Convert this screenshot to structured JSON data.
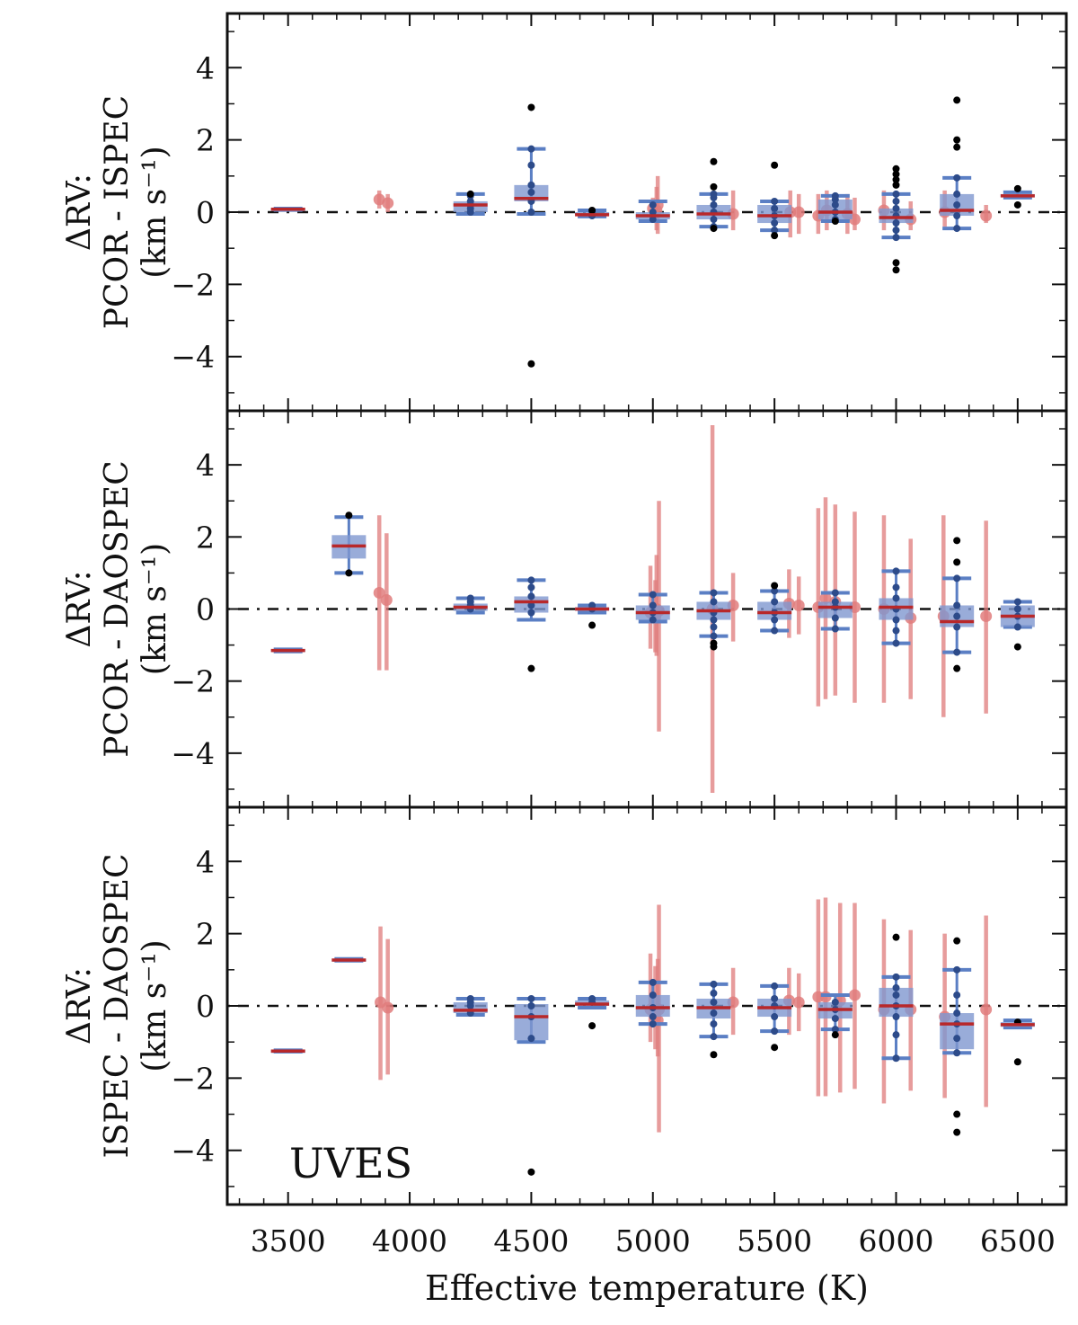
{
  "colors": {
    "box": "#7f97cf",
    "median": "#b8282a",
    "whisker": "#5b7fc4",
    "point": "#e07c7c",
    "outlier": "#000000",
    "inner_point": "#2d4b8a"
  },
  "chart_data": {
    "type": "box",
    "instrument_label": "UVES",
    "xlabel": "Effective temperature (K)",
    "xlim": [
      3250,
      6700
    ],
    "x_ticks": [
      3500,
      4000,
      4500,
      5000,
      5500,
      6000,
      6500
    ],
    "x_tick_labels": [
      "3500",
      "4000",
      "4500",
      "5000",
      "5500",
      "6000",
      "6500"
    ],
    "y_ticks": [
      -4,
      -2,
      0,
      2,
      4
    ],
    "y_tick_labels": [
      "−4",
      "−2",
      "0",
      "2",
      "4"
    ],
    "panels": [
      {
        "ylabel": [
          "ΔRV:",
          "PCOR - ISPEC",
          "(km s⁻¹)"
        ],
        "ylim": [
          -5.5,
          5.5
        ],
        "boxes": [
          {
            "x": 3500,
            "q1": 0.06,
            "q3": 0.1,
            "median": 0.08,
            "wlo": 0.06,
            "whi": 0.1,
            "inner": [],
            "outliers": []
          },
          {
            "x": 4250,
            "q1": 0.0,
            "q3": 0.3,
            "median": 0.2,
            "wlo": -0.05,
            "whi": 0.5,
            "inner": [
              0.0,
              0.1,
              0.2,
              0.3,
              0.45
            ],
            "outliers": [
              0.5
            ]
          },
          {
            "x": 4500,
            "q1": 0.3,
            "q3": 0.75,
            "median": 0.38,
            "wlo": -0.05,
            "whi": 1.75,
            "inner": [
              0.0,
              0.3,
              0.55,
              0.75,
              1.3,
              1.75
            ],
            "outliers": [
              2.9,
              -4.2
            ]
          },
          {
            "x": 4750,
            "q1": -0.1,
            "q3": 0.0,
            "median": -0.07,
            "wlo": -0.12,
            "whi": 0.05,
            "inner": [
              -0.1,
              0.0
            ],
            "outliers": [
              0.05
            ]
          },
          {
            "x": 5000,
            "q1": -0.2,
            "q3": 0.0,
            "median": -0.1,
            "wlo": -0.25,
            "whi": 0.3,
            "inner": [
              -0.2,
              0.0,
              0.2
            ],
            "outliers": []
          },
          {
            "x": 5250,
            "q1": -0.2,
            "q3": 0.2,
            "median": -0.05,
            "wlo": -0.4,
            "whi": 0.5,
            "inner": [
              -0.4,
              -0.2,
              0.0,
              0.2,
              0.4,
              0.5
            ],
            "outliers": [
              1.4,
              0.7,
              -0.45
            ]
          },
          {
            "x": 5500,
            "q1": -0.3,
            "q3": 0.2,
            "median": -0.1,
            "wlo": -0.5,
            "whi": 0.3,
            "inner": [
              -0.5,
              -0.3,
              -0.1,
              0.1,
              0.3
            ],
            "outliers": [
              1.3,
              -0.65
            ]
          },
          {
            "x": 5750,
            "q1": -0.2,
            "q3": 0.35,
            "median": 0.0,
            "wlo": -0.25,
            "whi": 0.45,
            "inner": [
              -0.2,
              0.0,
              0.2,
              0.35,
              0.45
            ],
            "outliers": [
              -0.25
            ]
          },
          {
            "x": 6000,
            "q1": -0.3,
            "q3": 0.1,
            "median": -0.15,
            "wlo": -0.7,
            "whi": 0.5,
            "inner": [
              -0.7,
              -0.5,
              -0.3,
              -0.1,
              0.1,
              0.3,
              0.5
            ],
            "outliers": [
              1.2,
              1.05,
              0.9,
              0.75,
              -1.4,
              -1.6
            ]
          },
          {
            "x": 6250,
            "q1": -0.1,
            "q3": 0.5,
            "median": 0.05,
            "wlo": -0.45,
            "whi": 0.95,
            "inner": [
              -0.45,
              -0.1,
              0.2,
              0.5,
              0.95
            ],
            "outliers": [
              3.1,
              2.0,
              1.8
            ]
          },
          {
            "x": 6500,
            "q1": 0.42,
            "q3": 0.5,
            "median": 0.45,
            "wlo": 0.4,
            "whi": 0.55,
            "inner": [],
            "outliers": [
              0.65,
              0.2
            ]
          }
        ],
        "points": [
          {
            "x": 3875,
            "y": 0.35,
            "lo": 0.1,
            "hi": 0.6
          },
          {
            "x": 3910,
            "y": 0.25,
            "lo": 0.0,
            "hi": 0.5
          },
          {
            "x": 5000,
            "y": 0.1,
            "lo": -0.3,
            "hi": 0.4
          },
          {
            "x": 5015,
            "y": 0.05,
            "lo": -0.5,
            "hi": 0.7
          },
          {
            "x": 5020,
            "y": 0.2,
            "lo": -0.6,
            "hi": 1.0
          },
          {
            "x": 5330,
            "y": -0.05,
            "lo": -0.5,
            "hi": 0.6
          },
          {
            "x": 5565,
            "y": 0.0,
            "lo": -0.7,
            "hi": 0.6
          },
          {
            "x": 5600,
            "y": 0.0,
            "lo": -0.6,
            "hi": 0.5
          },
          {
            "x": 5680,
            "y": -0.1,
            "lo": -0.6,
            "hi": 0.5
          },
          {
            "x": 5715,
            "y": 0.05,
            "lo": -0.5,
            "hi": 0.6
          },
          {
            "x": 5800,
            "y": -0.05,
            "lo": -0.6,
            "hi": 0.5
          },
          {
            "x": 5830,
            "y": -0.2,
            "lo": -0.5,
            "hi": 0.4
          },
          {
            "x": 5950,
            "y": 0.05,
            "lo": -0.5,
            "hi": 0.6
          },
          {
            "x": 6060,
            "y": -0.2,
            "lo": -0.5,
            "hi": 0.3
          },
          {
            "x": 6200,
            "y": 0.0,
            "lo": -0.4,
            "hi": 0.6
          },
          {
            "x": 6370,
            "y": -0.1,
            "lo": -0.3,
            "hi": 0.2
          }
        ]
      },
      {
        "ylabel": [
          "ΔRV:",
          "PCOR - DAOSPEC",
          "(km s⁻¹)"
        ],
        "ylim": [
          -5.5,
          5.5
        ],
        "boxes": [
          {
            "x": 3500,
            "q1": -1.18,
            "q3": -1.12,
            "median": -1.15,
            "wlo": -1.18,
            "whi": -1.12,
            "inner": [],
            "outliers": []
          },
          {
            "x": 3750,
            "q1": 1.4,
            "q3": 2.05,
            "median": 1.75,
            "wlo": 1.0,
            "whi": 2.55,
            "inner": [],
            "outliers": [
              2.6,
              1.0
            ]
          },
          {
            "x": 4250,
            "q1": -0.05,
            "q3": 0.15,
            "median": 0.05,
            "wlo": -0.1,
            "whi": 0.3,
            "inner": [
              0.0,
              0.1,
              0.2,
              0.3
            ],
            "outliers": []
          },
          {
            "x": 4500,
            "q1": -0.1,
            "q3": 0.35,
            "median": 0.2,
            "wlo": -0.3,
            "whi": 0.8,
            "inner": [
              -0.1,
              0.1,
              0.35,
              0.6,
              0.8
            ],
            "outliers": [
              -1.65
            ]
          },
          {
            "x": 4750,
            "q1": -0.05,
            "q3": 0.05,
            "median": 0.0,
            "wlo": -0.1,
            "whi": 0.1,
            "inner": [
              0.0,
              0.1
            ],
            "outliers": [
              -0.45
            ]
          },
          {
            "x": 5000,
            "q1": -0.3,
            "q3": 0.1,
            "median": -0.1,
            "wlo": -0.35,
            "whi": 0.4,
            "inner": [
              -0.3,
              -0.1,
              0.1,
              0.4
            ],
            "outliers": []
          },
          {
            "x": 5250,
            "q1": -0.3,
            "q3": 0.2,
            "median": -0.05,
            "wlo": -0.75,
            "whi": 0.45,
            "inner": [
              -0.75,
              -0.5,
              -0.3,
              -0.1,
              0.2,
              0.45
            ],
            "outliers": [
              -0.95,
              -1.05
            ]
          },
          {
            "x": 5500,
            "q1": -0.3,
            "q3": 0.2,
            "median": -0.1,
            "wlo": -0.6,
            "whi": 0.5,
            "inner": [
              -0.6,
              -0.3,
              -0.1,
              0.2,
              0.5
            ],
            "outliers": [
              0.65
            ]
          },
          {
            "x": 5750,
            "q1": -0.25,
            "q3": 0.2,
            "median": 0.05,
            "wlo": -0.55,
            "whi": 0.45,
            "inner": [
              -0.55,
              -0.25,
              0.05,
              0.2,
              0.45
            ],
            "outliers": []
          },
          {
            "x": 6000,
            "q1": -0.3,
            "q3": 0.3,
            "median": 0.05,
            "wlo": -0.95,
            "whi": 1.05,
            "inner": [
              -0.95,
              -0.6,
              -0.3,
              0.0,
              0.3,
              0.6,
              1.05
            ],
            "outliers": []
          },
          {
            "x": 6250,
            "q1": -0.5,
            "q3": 0.1,
            "median": -0.35,
            "wlo": -1.2,
            "whi": 0.85,
            "inner": [
              -1.2,
              -0.5,
              -0.2,
              0.1,
              0.85
            ],
            "outliers": [
              1.9,
              1.3,
              -1.65
            ]
          },
          {
            "x": 6500,
            "q1": -0.5,
            "q3": 0.1,
            "median": -0.2,
            "wlo": -0.5,
            "whi": 0.2,
            "inner": [
              -0.5,
              -0.2,
              0.0,
              0.2
            ],
            "outliers": [
              -1.05
            ]
          }
        ],
        "points": [
          {
            "x": 3875,
            "y": 0.45,
            "lo": -1.7,
            "hi": 2.6
          },
          {
            "x": 3905,
            "y": 0.25,
            "lo": -1.7,
            "hi": 2.1
          },
          {
            "x": 4990,
            "y": -0.1,
            "lo": -1.1,
            "hi": 1.2
          },
          {
            "x": 5010,
            "y": -0.2,
            "lo": -1.2,
            "hi": 0.8
          },
          {
            "x": 5015,
            "y": 0.0,
            "lo": -1.3,
            "hi": 1.5
          },
          {
            "x": 5025,
            "y": -0.05,
            "lo": -3.4,
            "hi": 3.0
          },
          {
            "x": 5245,
            "y": 0.0,
            "lo": -5.1,
            "hi": 5.1
          },
          {
            "x": 5330,
            "y": 0.1,
            "lo": -0.9,
            "hi": 1.0
          },
          {
            "x": 5560,
            "y": 0.15,
            "lo": -0.8,
            "hi": 1.1
          },
          {
            "x": 5600,
            "y": 0.1,
            "lo": -0.7,
            "hi": 0.9
          },
          {
            "x": 5680,
            "y": 0.05,
            "lo": -2.7,
            "hi": 2.8
          },
          {
            "x": 5710,
            "y": 0.3,
            "lo": -2.5,
            "hi": 3.1
          },
          {
            "x": 5750,
            "y": 0.2,
            "lo": -2.4,
            "hi": 2.9
          },
          {
            "x": 5830,
            "y": 0.05,
            "lo": -2.6,
            "hi": 2.7
          },
          {
            "x": 5950,
            "y": 0.0,
            "lo": -2.6,
            "hi": 2.6
          },
          {
            "x": 6060,
            "y": -0.25,
            "lo": -2.5,
            "hi": 1.95
          },
          {
            "x": 6195,
            "y": -0.2,
            "lo": -3.0,
            "hi": 2.6
          },
          {
            "x": 6370,
            "y": -0.2,
            "lo": -2.9,
            "hi": 2.45
          }
        ]
      },
      {
        "ylabel": [
          "ΔRV:",
          "ISPEC - DAOSPEC",
          "(km s⁻¹)"
        ],
        "ylim": [
          -5.5,
          5.5
        ],
        "boxes": [
          {
            "x": 3500,
            "q1": -1.27,
            "q3": -1.23,
            "median": -1.25,
            "wlo": -1.27,
            "whi": -1.23,
            "inner": [],
            "outliers": []
          },
          {
            "x": 3750,
            "q1": 1.25,
            "q3": 1.3,
            "median": 1.27,
            "wlo": 1.25,
            "whi": 1.3,
            "inner": [],
            "outliers": []
          },
          {
            "x": 4250,
            "q1": -0.2,
            "q3": 0.1,
            "median": -0.12,
            "wlo": -0.25,
            "whi": 0.2,
            "inner": [
              -0.2,
              0.0,
              0.1,
              0.2
            ],
            "outliers": []
          },
          {
            "x": 4500,
            "q1": -0.95,
            "q3": 0.05,
            "median": -0.3,
            "wlo": -1.0,
            "whi": 0.2,
            "inner": [
              -0.9,
              -0.3,
              0.0,
              0.2
            ],
            "outliers": [
              -4.6
            ]
          },
          {
            "x": 4750,
            "q1": 0.0,
            "q3": 0.15,
            "median": 0.05,
            "wlo": -0.05,
            "whi": 0.2,
            "inner": [
              0.1,
              0.2
            ],
            "outliers": [
              -0.55
            ]
          },
          {
            "x": 5000,
            "q1": -0.3,
            "q3": 0.3,
            "median": -0.05,
            "wlo": -0.5,
            "whi": 0.65,
            "inner": [
              -0.5,
              -0.3,
              -0.05,
              0.3,
              0.65
            ],
            "outliers": []
          },
          {
            "x": 5250,
            "q1": -0.35,
            "q3": 0.2,
            "median": -0.05,
            "wlo": -0.85,
            "whi": 0.6,
            "inner": [
              -0.85,
              -0.5,
              -0.2,
              0.1,
              0.35,
              0.6
            ],
            "outliers": [
              -1.35
            ]
          },
          {
            "x": 5500,
            "q1": -0.3,
            "q3": 0.2,
            "median": -0.05,
            "wlo": -0.7,
            "whi": 0.55,
            "inner": [
              -0.7,
              -0.3,
              0.0,
              0.2,
              0.55
            ],
            "outliers": [
              -1.15
            ]
          },
          {
            "x": 5750,
            "q1": -0.35,
            "q3": 0.1,
            "median": -0.1,
            "wlo": -0.65,
            "whi": 0.3,
            "inner": [
              -0.65,
              -0.35,
              -0.1,
              0.1
            ],
            "outliers": [
              -0.8
            ]
          },
          {
            "x": 6000,
            "q1": -0.3,
            "q3": 0.5,
            "median": 0.0,
            "wlo": -1.45,
            "whi": 0.8,
            "inner": [
              -1.45,
              -0.8,
              -0.3,
              0.0,
              0.3,
              0.5,
              0.8
            ],
            "outliers": [
              1.9
            ]
          },
          {
            "x": 6250,
            "q1": -1.2,
            "q3": -0.2,
            "median": -0.5,
            "wlo": -1.3,
            "whi": 1.0,
            "inner": [
              -1.3,
              -0.9,
              -0.5,
              -0.2,
              0.3,
              1.0
            ],
            "outliers": [
              1.8,
              -3.0,
              -3.5
            ]
          },
          {
            "x": 6500,
            "q1": -0.58,
            "q3": -0.45,
            "median": -0.52,
            "wlo": -0.6,
            "whi": -0.4,
            "inner": [],
            "outliers": [
              -0.45,
              -1.55
            ]
          }
        ],
        "points": [
          {
            "x": 3880,
            "y": 0.1,
            "lo": -2.05,
            "hi": 2.2
          },
          {
            "x": 3910,
            "y": -0.05,
            "lo": -1.9,
            "hi": 1.85
          },
          {
            "x": 4990,
            "y": -0.1,
            "lo": -1.0,
            "hi": 1.45
          },
          {
            "x": 5010,
            "y": -0.3,
            "lo": -1.2,
            "hi": 1.1
          },
          {
            "x": 5020,
            "y": -0.4,
            "lo": -1.4,
            "hi": 1.3
          },
          {
            "x": 5025,
            "y": -0.1,
            "lo": -3.5,
            "hi": 2.8
          },
          {
            "x": 5330,
            "y": 0.1,
            "lo": -0.8,
            "hi": 1.05
          },
          {
            "x": 5560,
            "y": 0.15,
            "lo": -0.8,
            "hi": 1.05
          },
          {
            "x": 5600,
            "y": 0.1,
            "lo": -0.7,
            "hi": 0.9
          },
          {
            "x": 5680,
            "y": 0.25,
            "lo": -2.5,
            "hi": 2.95
          },
          {
            "x": 5710,
            "y": 0.25,
            "lo": -2.5,
            "hi": 3.0
          },
          {
            "x": 5770,
            "y": 0.15,
            "lo": -2.4,
            "hi": 2.85
          },
          {
            "x": 5830,
            "y": 0.3,
            "lo": -2.3,
            "hi": 2.85
          },
          {
            "x": 5950,
            "y": -0.1,
            "lo": -2.7,
            "hi": 2.4
          },
          {
            "x": 6060,
            "y": -0.1,
            "lo": -2.35,
            "hi": 2.1
          },
          {
            "x": 6200,
            "y": -0.3,
            "lo": -2.55,
            "hi": 2.0
          },
          {
            "x": 6370,
            "y": -0.1,
            "lo": -2.8,
            "hi": 2.5
          }
        ]
      }
    ]
  }
}
